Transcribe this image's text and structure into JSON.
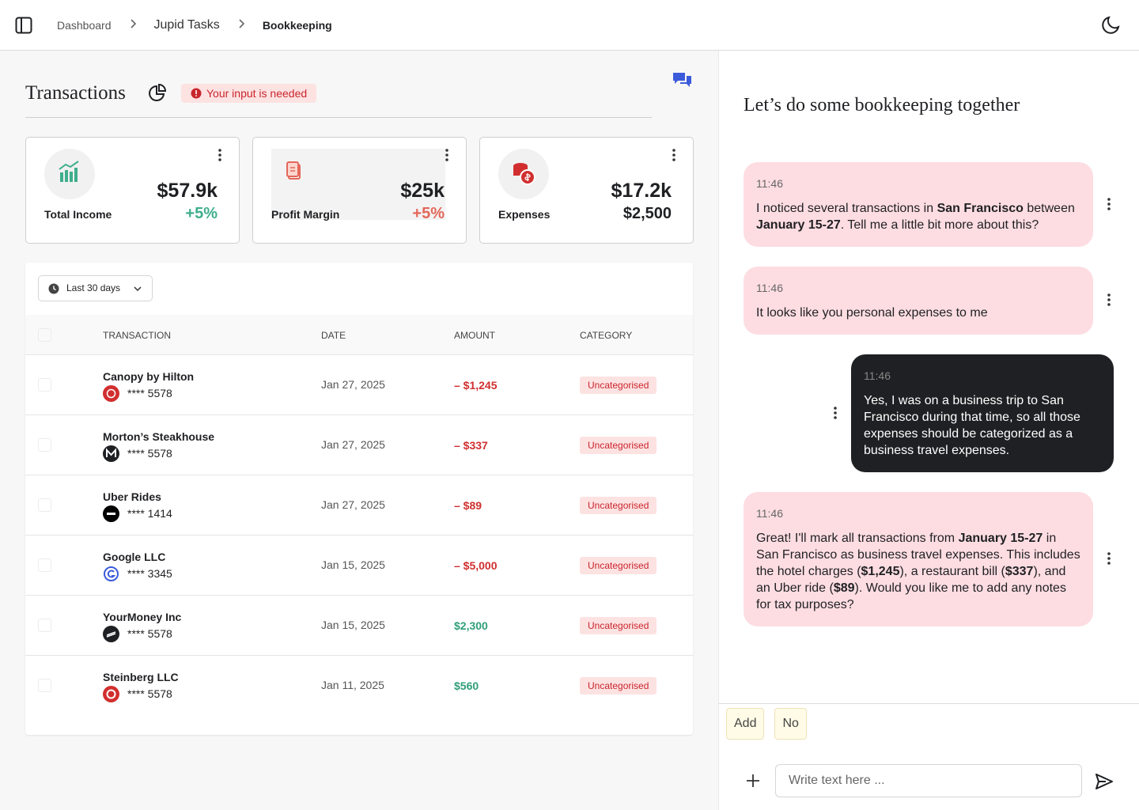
{
  "breadcrumbs": [
    "Dashboard",
    "Jupid Tasks",
    "Bookkeeping"
  ],
  "transactions": {
    "title": "Transactions",
    "alert": "Your input is needed"
  },
  "cards": [
    {
      "label": "Total Income",
      "value": "$57.9k",
      "change": "+5%",
      "color": "#3fae8c"
    },
    {
      "label": "Profit Margin",
      "value": "$25k",
      "change": "+5%",
      "color": "#e4675a"
    },
    {
      "label": "Expenses",
      "value": "$17.2k",
      "change": "$2,500",
      "color": "#1f2023"
    }
  ],
  "table": {
    "filter": "Last 30 days",
    "columns": [
      "TRANSACTION",
      "DATE",
      "AMOUNT",
      "CATEGORY"
    ],
    "rows": [
      {
        "name": "Canopy by Hilton",
        "card": "**** 5578",
        "date": "Jan 27, 2025",
        "amount": "– $1,245",
        "color": "#d12f2f",
        "category": "Uncategorised"
      },
      {
        "name": "Morton’s Steakhouse",
        "card": "**** 5578",
        "date": "Jan 27, 2025",
        "amount": "– $337",
        "color": "#d12f2f",
        "category": "Uncategorised"
      },
      {
        "name": "Uber Rides",
        "card": "**** 1414",
        "date": "Jan 27, 2025",
        "amount": "– $89",
        "color": "#d12f2f",
        "category": "Uncategorised"
      },
      {
        "name": "Google LLC",
        "card": "**** 3345",
        "date": "Jan 15, 2025",
        "amount": "– $5,000",
        "color": "#d12f2f",
        "category": "Uncategorised"
      },
      {
        "name": "YourMoney Inc",
        "card": "**** 5578",
        "date": "Jan 15, 2025",
        "amount": "$2,300",
        "color": "#2f9e78",
        "category": "Uncategorised"
      },
      {
        "name": "Steinberg LLC",
        "card": "**** 5578",
        "date": "Jan 11, 2025",
        "amount": "$560",
        "color": "#2f9e78",
        "category": "Uncategorised"
      }
    ]
  },
  "chat": {
    "title": "Let’s do some bookkeeping together",
    "messages": [
      {
        "time": "11:46",
        "role": "assistant",
        "parts": [
          {
            "text": "I noticed several transactions in "
          },
          {
            "text": "San Francisco",
            "bold": true
          },
          {
            "text": " between "
          },
          {
            "text": "January 15-27",
            "bold": true
          },
          {
            "text": ". Tell me a little bit more about this?"
          }
        ]
      },
      {
        "time": "11:46",
        "role": "assistant",
        "parts": [
          {
            "text": "It looks like you personal expenses to me"
          }
        ]
      },
      {
        "time": "11:46",
        "role": "user",
        "parts": [
          {
            "text": "Yes, I was on a business trip to San Francisco during that time, so all those expenses should be categorized as a business travel expenses."
          }
        ]
      },
      {
        "time": "11:46",
        "role": "assistant",
        "parts": [
          {
            "text": "Great! I'll mark all transactions from "
          },
          {
            "text": "January 15-27",
            "bold": true
          },
          {
            "text": " in San Francisco as business travel expenses. This includes the hotel charges ("
          },
          {
            "text": "$1,245",
            "bold": true
          },
          {
            "text": "), a restaurant bill ("
          },
          {
            "text": "$337",
            "bold": true
          },
          {
            "text": "), and an Uber ride ("
          },
          {
            "text": "$89",
            "bold": true
          },
          {
            "text": "). Would you like me to add any notes for tax purposes?"
          }
        ]
      }
    ],
    "suggestions": [
      "Add",
      "No"
    ],
    "placeholder": "Write text here ..."
  }
}
